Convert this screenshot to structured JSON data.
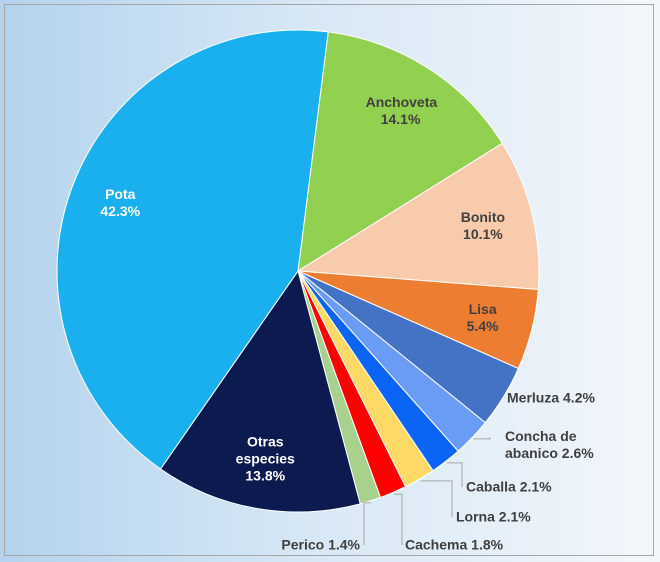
{
  "chart_data": {
    "type": "pie",
    "categories": [
      "Anchoveta",
      "Bonito",
      "Lisa",
      "Merluza",
      "Concha de abanico",
      "Caballa",
      "Lorna",
      "Cachema",
      "Perico",
      "Otras especies",
      "Pota"
    ],
    "values": [
      14.1,
      10.1,
      5.4,
      4.2,
      2.6,
      2.1,
      2.1,
      1.8,
      1.4,
      13.8,
      42.3
    ],
    "value_labels": [
      "14.1%",
      "10.1%",
      "5.4%",
      "4.2%",
      "2.6%",
      "2.1%",
      "2.1%",
      "1.8%",
      "1.4%",
      "13.8%",
      "42.3%"
    ],
    "colors": [
      "#92d050",
      "#f8cbad",
      "#ed7d31",
      "#4472c4",
      "#6a9cf5",
      "#0a64f5",
      "#ffd966",
      "#ff0000",
      "#a9d18e",
      "#0c1a50",
      "#1ab0ef"
    ]
  }
}
